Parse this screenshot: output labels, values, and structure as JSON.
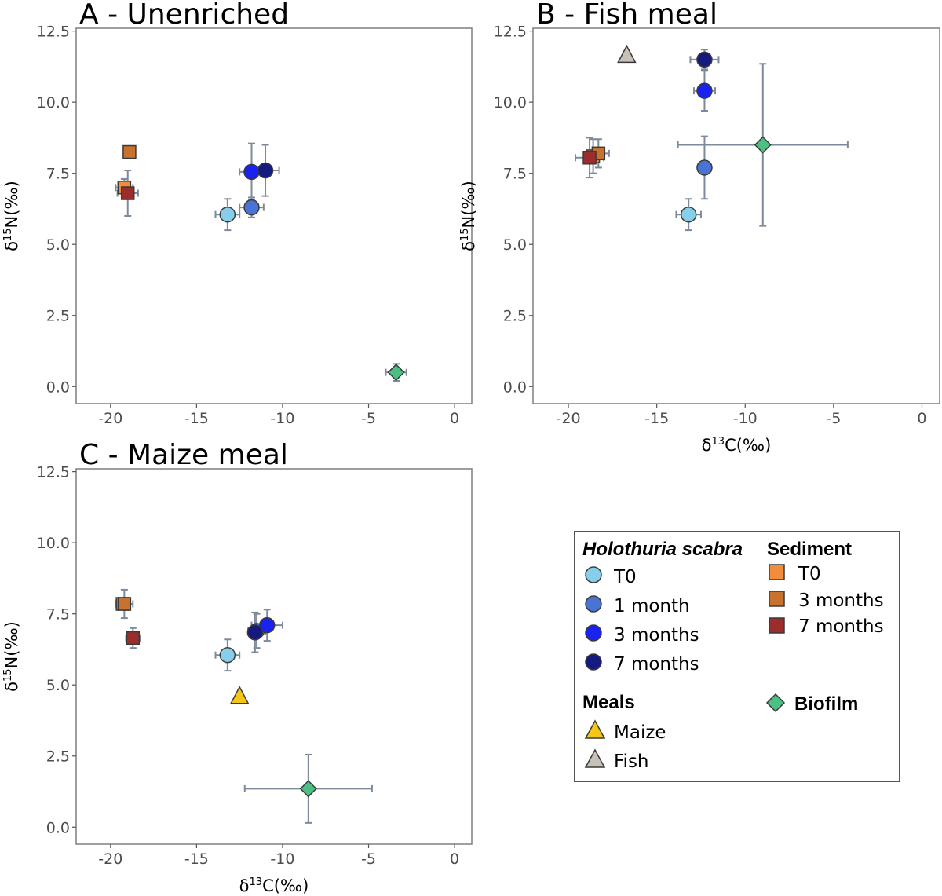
{
  "chart_data": [
    {
      "type": "scatter",
      "title": "A - Unenriched",
      "xlabel": "δ13C(‰)",
      "ylabel": "δ15N(‰)",
      "show_xlabel": false,
      "xlim": [
        -22,
        1
      ],
      "ylim": [
        -0.6,
        12.6
      ],
      "xticks": [
        -20,
        -15,
        -10,
        -5,
        0
      ],
      "yticks": [
        0.0,
        2.5,
        5.0,
        7.5,
        10.0,
        12.5
      ],
      "grid": false,
      "points": [
        {
          "group": "Holothuria scabra",
          "label": "T0",
          "x": -13.2,
          "y": 6.05,
          "xerr": 0.7,
          "yerr": 0.55
        },
        {
          "group": "Holothuria scabra",
          "label": "1 month",
          "x": -11.8,
          "y": 6.3,
          "xerr": 0.7,
          "yerr": 0.35
        },
        {
          "group": "Holothuria scabra",
          "label": "3 months",
          "x": -11.8,
          "y": 7.55,
          "xerr": 0.7,
          "yerr": 1.0
        },
        {
          "group": "Holothuria scabra",
          "label": "7 months",
          "x": -11.0,
          "y": 7.6,
          "xerr": 0.8,
          "yerr": 0.9
        },
        {
          "group": "Sediment",
          "label": "T0",
          "x": -19.2,
          "y": 7.0,
          "xerr": 0.5,
          "yerr": 0.3
        },
        {
          "group": "Sediment",
          "label": "3 months",
          "x": -18.9,
          "y": 8.25,
          "xerr": 0.1,
          "yerr": 0.1
        },
        {
          "group": "Sediment",
          "label": "7 months",
          "x": -19.0,
          "y": 6.8,
          "xerr": 0.6,
          "yerr": 0.8
        },
        {
          "group": "Biofilm",
          "label": "Biofilm",
          "x": -3.4,
          "y": 0.5,
          "xerr": 0.6,
          "yerr": 0.3
        }
      ]
    },
    {
      "type": "scatter",
      "title": "B - Fish meal",
      "xlabel": "δ13C(‰)",
      "ylabel": "δ15N(‰)",
      "show_xlabel": true,
      "xlim": [
        -22,
        1
      ],
      "ylim": [
        -0.6,
        12.6
      ],
      "xticks": [
        -20,
        -15,
        -10,
        -5,
        0
      ],
      "yticks": [
        0.0,
        2.5,
        5.0,
        7.5,
        10.0,
        12.5
      ],
      "grid": false,
      "points": [
        {
          "group": "Holothuria scabra",
          "label": "T0",
          "x": -13.2,
          "y": 6.05,
          "xerr": 0.7,
          "yerr": 0.55
        },
        {
          "group": "Holothuria scabra",
          "label": "1 month",
          "x": -12.3,
          "y": 7.7,
          "xerr": 0.3,
          "yerr": 1.1
        },
        {
          "group": "Holothuria scabra",
          "label": "3 months",
          "x": -12.3,
          "y": 10.4,
          "xerr": 0.6,
          "yerr": 0.7
        },
        {
          "group": "Holothuria scabra",
          "label": "7 months",
          "x": -12.3,
          "y": 11.5,
          "xerr": 0.8,
          "yerr": 0.35
        },
        {
          "group": "Sediment",
          "label": "T0",
          "x": -18.6,
          "y": 8.1,
          "xerr": 0.3,
          "yerr": 0.6
        },
        {
          "group": "Sediment",
          "label": "3 months",
          "x": -18.3,
          "y": 8.2,
          "xerr": 0.6,
          "yerr": 0.5
        },
        {
          "group": "Sediment",
          "label": "7 months",
          "x": -18.8,
          "y": 8.05,
          "xerr": 0.8,
          "yerr": 0.7
        },
        {
          "group": "Biofilm",
          "label": "Biofilm",
          "x": -9.0,
          "y": 8.5,
          "xerr": 4.8,
          "yerr": 2.85
        },
        {
          "group": "Meals",
          "label": "Fish",
          "x": -16.7,
          "y": 11.65,
          "xerr": 0.1,
          "yerr": 0.1
        }
      ]
    },
    {
      "type": "scatter",
      "title": "C - Maize meal",
      "xlabel": "δ13C(‰)",
      "ylabel": "δ15N(‰)",
      "show_xlabel": true,
      "xlim": [
        -22,
        1
      ],
      "ylim": [
        -0.6,
        12.6
      ],
      "xticks": [
        -20,
        -15,
        -10,
        -5,
        0
      ],
      "yticks": [
        0.0,
        2.5,
        5.0,
        7.5,
        10.0,
        12.5
      ],
      "grid": false,
      "points": [
        {
          "group": "Holothuria scabra",
          "label": "T0",
          "x": -13.2,
          "y": 6.05,
          "xerr": 0.7,
          "yerr": 0.55
        },
        {
          "group": "Holothuria scabra",
          "label": "1 month",
          "x": -11.5,
          "y": 6.9,
          "xerr": 0.5,
          "yerr": 0.6
        },
        {
          "group": "Holothuria scabra",
          "label": "3 months",
          "x": -10.9,
          "y": 7.1,
          "xerr": 0.9,
          "yerr": 0.55
        },
        {
          "group": "Holothuria scabra",
          "label": "7 months",
          "x": -11.6,
          "y": 6.85,
          "xerr": 0.4,
          "yerr": 0.7
        },
        {
          "group": "Sediment",
          "label": "T0",
          "x": -19.3,
          "y": 7.85,
          "xerr": 0.4,
          "yerr": 0.2
        },
        {
          "group": "Sediment",
          "label": "3 months",
          "x": -19.2,
          "y": 7.85,
          "xerr": 0.5,
          "yerr": 0.5
        },
        {
          "group": "Sediment",
          "label": "7 months",
          "x": -18.7,
          "y": 6.65,
          "xerr": 0.4,
          "yerr": 0.35
        },
        {
          "group": "Biofilm",
          "label": "Biofilm",
          "x": -8.5,
          "y": 1.35,
          "xerr": 3.7,
          "yerr": 1.2
        },
        {
          "group": "Meals",
          "label": "Maize",
          "x": -12.5,
          "y": 4.6,
          "xerr": 0.05,
          "yerr": 0.1
        }
      ]
    }
  ],
  "legend": {
    "position": "bottom-right",
    "holothuria_title": "Holothuria scabra",
    "holothuria_items": [
      {
        "label": "T0",
        "color": "#87ceeb"
      },
      {
        "label": "1 month",
        "color": "#4a74d4"
      },
      {
        "label": "3 months",
        "color": "#1a22f0"
      },
      {
        "label": "7 months",
        "color": "#141a80"
      }
    ],
    "sediment_title": "Sediment",
    "sediment_items": [
      {
        "label": "T0",
        "color": "#f28d3c"
      },
      {
        "label": "3 months",
        "color": "#c8722f"
      },
      {
        "label": "7 months",
        "color": "#9b2d2d"
      }
    ],
    "meals_title": "Meals",
    "meals_items": [
      {
        "label": "Maize",
        "color": "#f5c518"
      },
      {
        "label": "Fish",
        "color": "#c9c1b7"
      }
    ],
    "biofilm_label": "Biofilm",
    "biofilm_color": "#4cbf83"
  },
  "colors": {
    "errorbar": "#7d8a9c",
    "panel_border": "#7f7f7f",
    "marker_outline": "#3a3a3a"
  }
}
